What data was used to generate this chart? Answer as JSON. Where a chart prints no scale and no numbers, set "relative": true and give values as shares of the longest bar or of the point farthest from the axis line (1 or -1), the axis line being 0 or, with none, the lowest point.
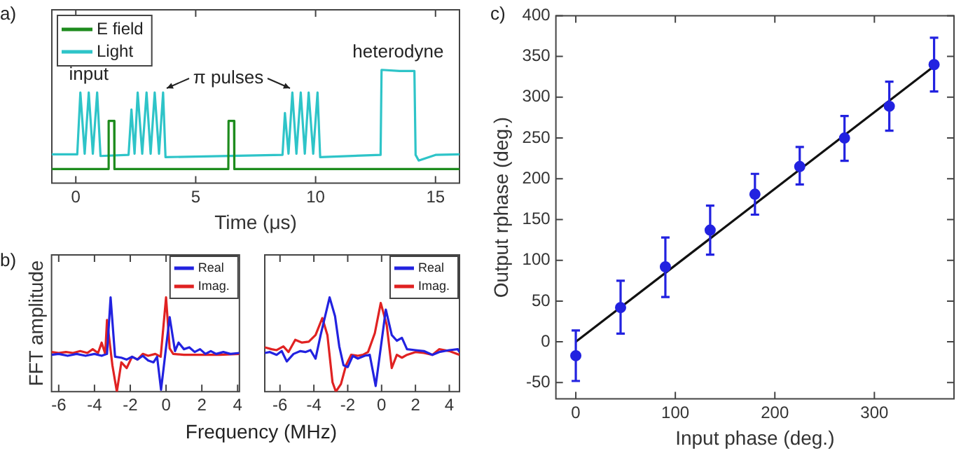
{
  "chart_data": [
    {
      "type": "line",
      "title": "a)",
      "xlabel": "Time (μs)",
      "relative": true,
      "xlim": [
        -1,
        16
      ],
      "xticks": [
        0,
        5,
        10,
        15
      ],
      "legend": "top left",
      "marker": "none",
      "annotations": [
        {
          "text": "input",
          "x": 0.54,
          "y": 0.8
        },
        "π pulses",
        {
          "text": "heterodyne",
          "x": 13.44,
          "y": 1
        }
      ],
      "series": [
        {
          "name": "E field",
          "color": "#1e8c1e",
          "x": [
            -1,
            1.36,
            1.37,
            1.6,
            1.61,
            6.36,
            6.37,
            6.6,
            6.61,
            16
          ],
          "values": [
            0.125,
            0.125,
            0.55,
            0.55,
            0.125,
            0.125,
            0.55,
            0.55,
            0.125,
            0.125
          ]
        },
        {
          "name": "Light",
          "color": "#2ec4c8",
          "x": [
            -1,
            0.06,
            0.19,
            0.37,
            0.54,
            0.71,
            0.89,
            1.03,
            2.2,
            2.32,
            2.45,
            2.58,
            2.77,
            2.95,
            3.12,
            3.29,
            3.47,
            3.64,
            3.74,
            8.62,
            8.72,
            8.87,
            9.03,
            9.2,
            9.38,
            9.55,
            9.71,
            9.9,
            10.08,
            10.19,
            12.71,
            12.75,
            13.5,
            14.12,
            14.17,
            14.3,
            15,
            16
          ],
          "values": [
            0.255,
            0.255,
            0.8,
            0.26,
            0.8,
            0.26,
            0.8,
            0.24,
            0.25,
            0.65,
            0.26,
            0.8,
            0.26,
            0.8,
            0.26,
            0.8,
            0.26,
            0.8,
            0.23,
            0.25,
            0.62,
            0.26,
            0.8,
            0.26,
            0.8,
            0.26,
            0.8,
            0.26,
            0.8,
            0.23,
            0.25,
            1,
            0.99,
            0.99,
            0.25,
            0.2,
            0.25,
            0.255
          ]
        }
      ]
    },
    {
      "type": "line",
      "title": "b)",
      "xlabel": "Frequency (MHz)",
      "ylabel": "FFT amplitude",
      "relative": true,
      "xlim": [
        -6.4,
        4.1
      ],
      "xticks": [
        -6,
        -4,
        -2,
        0,
        2,
        4
      ],
      "legend": "top right",
      "marker": "none",
      "series": [
        {
          "name": "Real",
          "color": "#2222e0",
          "x": [
            -6.4,
            -6,
            -5.5,
            -5,
            -4.5,
            -4,
            -3.6,
            -3.3,
            -3.1,
            -2.85,
            -2.5,
            -2.2,
            -1.9,
            -1.6,
            -1.3,
            -1,
            -0.7,
            -0.5,
            -0.28,
            0.2,
            0.5,
            0.7,
            1,
            1.3,
            1.6,
            1.9,
            2.2,
            2.5,
            2.8,
            3.2,
            3.6,
            4.1
          ],
          "values": [
            0.39,
            0.4,
            0.38,
            0.4,
            0.38,
            0.4,
            0.38,
            0.4,
            1,
            0.37,
            0.36,
            0.34,
            0.37,
            0.34,
            0.38,
            0.33,
            0.31,
            0.37,
            0.02,
            0.79,
            0.43,
            0.52,
            0.45,
            0.47,
            0.42,
            0.45,
            0.4,
            0.43,
            0.4,
            0.42,
            0.4,
            0.41
          ]
        },
        {
          "name": "Imag.",
          "color": "#e02222",
          "x": [
            -6.4,
            -6,
            -5.6,
            -5.2,
            -4.8,
            -4.4,
            -4.1,
            -3.8,
            -3.6,
            -3.4,
            -3.3,
            -3,
            -2.75,
            -2.5,
            -2.2,
            -1.9,
            -1.6,
            -1.3,
            -1,
            -0.6,
            -0.3,
            0,
            0.2,
            0.4,
            1,
            2,
            3,
            4.1
          ],
          "values": [
            0.42,
            0.41,
            0.42,
            0.41,
            0.43,
            0.41,
            0.45,
            0.41,
            0.52,
            0.4,
            0.76,
            0.28,
            0,
            0.31,
            0.25,
            0.37,
            0.34,
            0.4,
            0.38,
            0.4,
            0.37,
            1,
            0.46,
            0.4,
            0.39,
            0.39,
            0.39,
            0.4
          ]
        }
      ]
    },
    {
      "type": "line",
      "relative": true,
      "xlim": [
        -6.9,
        4.6
      ],
      "xticks": [
        -6,
        -4,
        -2,
        0,
        2,
        4
      ],
      "legend": "top right",
      "marker": "none",
      "series": [
        {
          "name": "Real",
          "color": "#2222e0",
          "x": [
            -6.9,
            -6.6,
            -6.2,
            -5.9,
            -5.6,
            -5.2,
            -4.8,
            -4.5,
            -4.2,
            -3.9,
            -3.6,
            -3.07,
            -2.75,
            -2.5,
            -2.25,
            -2,
            -1.7,
            -1.4,
            -1,
            -0.7,
            -0.35,
            0.25,
            0.6,
            0.9,
            1.2,
            1.5,
            2,
            2.5,
            3,
            3.4,
            4,
            4.5,
            4.6
          ],
          "values": [
            0.41,
            0.42,
            0.39,
            0.43,
            0.32,
            0.4,
            0.43,
            0.42,
            0.44,
            0.35,
            0.6,
            1,
            0.8,
            0.48,
            0.28,
            0.26,
            0.38,
            0.35,
            0.38,
            0.39,
            0.06,
            0.87,
            0.6,
            0.54,
            0.57,
            0.45,
            0.44,
            0.43,
            0.39,
            0.42,
            0.44,
            0.45,
            0.42
          ]
        },
        {
          "name": "Imag.",
          "color": "#e02222",
          "x": [
            -6.9,
            -6.5,
            -6.2,
            -5.8,
            -5.5,
            -5.1,
            -4.7,
            -4.3,
            -3.9,
            -3.5,
            -3.2,
            -2.9,
            -2.7,
            -2.4,
            -2.1,
            -1.8,
            -1.4,
            -1.1,
            -0.8,
            -0.4,
            -0.05,
            0.3,
            0.6,
            0.9,
            1.2,
            1.5,
            2,
            2.5,
            3,
            3.4,
            4,
            4.6
          ],
          "values": [
            0.47,
            0.45,
            0.44,
            0.48,
            0.42,
            0.55,
            0.52,
            0.53,
            0.6,
            0.78,
            0.6,
            0.1,
            0,
            0.08,
            0.28,
            0.39,
            0.38,
            0.39,
            0.42,
            0.62,
            0.94,
            0.71,
            0.25,
            0.39,
            0.36,
            0.39,
            0.42,
            0.41,
            0.39,
            0.45,
            0.43,
            0.39
          ]
        }
      ]
    },
    {
      "type": "scatter",
      "title": "c)",
      "xlabel": "Input phase (deg.)",
      "ylabel": "Output rphase (deg.)",
      "xlim": [
        -20,
        380
      ],
      "ylim": [
        -70,
        400
      ],
      "xticks": [
        0,
        100,
        200,
        300
      ],
      "yticks": [
        -50,
        0,
        50,
        100,
        150,
        200,
        250,
        300,
        350,
        400
      ],
      "marker": "circle",
      "series": [
        {
          "color": "#2222e0",
          "x": [
            0,
            45,
            90,
            135,
            180,
            225,
            270,
            315,
            360
          ],
          "values": [
            -17,
            42,
            92,
            137,
            181,
            215,
            250,
            289,
            340
          ],
          "errors": [
            [
              -48,
              14
            ],
            [
              10,
              75
            ],
            [
              55,
              128
            ],
            [
              107,
              167
            ],
            [
              156,
              206
            ],
            [
              193,
              239
            ],
            [
              222,
              277
            ],
            [
              259,
              319
            ],
            [
              307,
              373
            ]
          ]
        },
        {
          "type": "line",
          "color": "#111111",
          "marker": "none",
          "x": [
            0,
            360
          ],
          "values": [
            0,
            338
          ]
        }
      ]
    }
  ]
}
